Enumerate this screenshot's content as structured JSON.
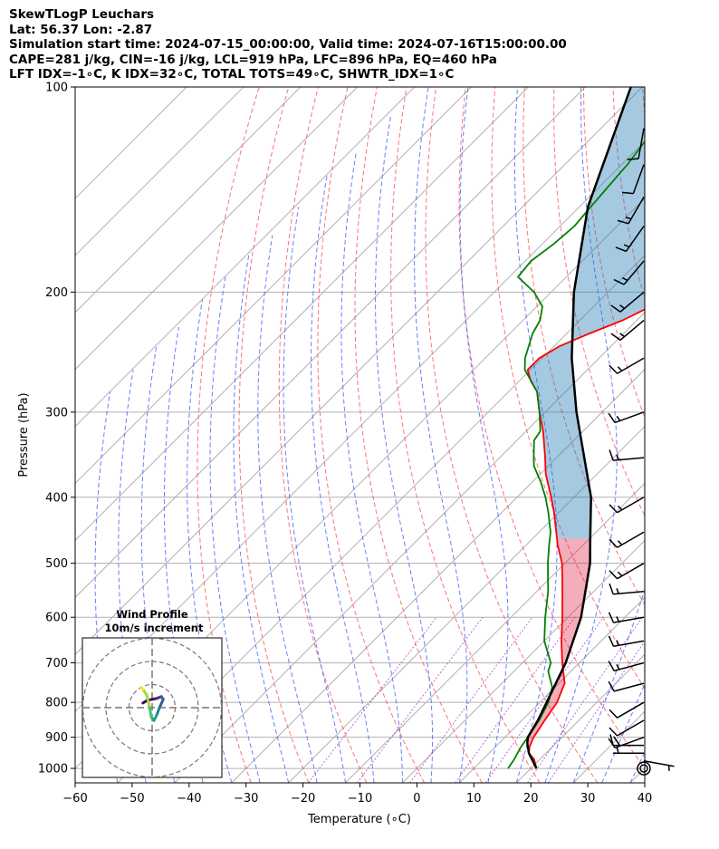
{
  "header": {
    "line1": "SkewTLogP Leuchars",
    "line2": "Lat: 56.37   Lon: -2.87",
    "line3": "Simulation start time: 2024-07-15_00:00:00, Valid time: 2024-07-16T15:00:00.00",
    "line4": "CAPE=281 j/kg, CIN=-16 j/kg, LCL=919 hPa, LFC=896 hPa, EQ=460 hPa",
    "line5": "LFT IDX=-1∘C, K IDX=32∘C, TOTAL TOTS=49∘C, SHWTR_IDX=1∘C"
  },
  "chart_data": {
    "type": "skewt",
    "xlabel": "Temperature (∘C)",
    "ylabel": "Pressure (hPa)",
    "xlim": [
      -60,
      40
    ],
    "ylim": [
      1050,
      100
    ],
    "x_ticks": [
      -60,
      -50,
      -40,
      -30,
      -20,
      -10,
      0,
      10,
      20,
      30,
      40
    ],
    "x_tick_labels": [
      "−60",
      "−50",
      "−40",
      "−30",
      "−20",
      "−10",
      "0",
      "10",
      "20",
      "30",
      "40"
    ],
    "y_ticks": [
      1000,
      900,
      800,
      700,
      600,
      500,
      400,
      300,
      200,
      100
    ],
    "y_tick_labels": [
      "1000",
      "900",
      "800",
      "700",
      "600",
      "500",
      "400",
      "300",
      "200",
      "100"
    ],
    "series": [
      {
        "name": "Temperature",
        "color": "#ff0000",
        "p": [
          1000,
          970,
          950,
          930,
          900,
          850,
          800,
          750,
          700,
          650,
          600,
          550,
          500,
          470,
          450,
          420,
          400,
          370,
          350,
          320,
          300,
          280,
          270,
          260,
          250,
          240,
          230,
          220,
          210,
          200,
          190,
          180,
          170,
          160,
          150,
          140,
          130,
          120,
          110,
          100
        ],
        "t": [
          21,
          19,
          17,
          16,
          15,
          14,
          13,
          11,
          7,
          3,
          -1,
          -5.5,
          -10.5,
          -14.5,
          -17,
          -21,
          -24,
          -29,
          -32,
          -37,
          -41,
          -45,
          -48,
          -50.5,
          -50.5,
          -49,
          -46,
          -42.5,
          -40,
          -37,
          -36,
          -36,
          -36.5,
          -36,
          -36.5,
          -37,
          -36.5,
          -36.5,
          -37,
          -37
        ]
      },
      {
        "name": "Dewpoint",
        "color": "#008000",
        "p": [
          1000,
          970,
          950,
          930,
          900,
          850,
          800,
          760,
          720,
          700,
          650,
          600,
          550,
          500,
          470,
          450,
          420,
          400,
          380,
          360,
          350,
          330,
          320,
          300,
          280,
          260,
          250,
          230,
          220,
          210,
          200,
          190,
          180,
          170,
          160,
          150,
          140,
          130,
          120,
          110,
          100
        ],
        "t": [
          16,
          15.5,
          15,
          14.5,
          14,
          13,
          11.5,
          9.5,
          6,
          5,
          0,
          -4,
          -8,
          -13,
          -16,
          -18,
          -22,
          -25,
          -28.5,
          -32.5,
          -34,
          -37,
          -37.5,
          -41,
          -45,
          -51,
          -53,
          -56,
          -57,
          -59,
          -63,
          -68.5,
          -69,
          -68,
          -67.5,
          -68,
          -68.5,
          -69,
          -70,
          -71,
          -72
        ]
      },
      {
        "name": "Parcel profile",
        "color": "#000000",
        "p": [
          1000,
          950,
          919,
          900,
          850,
          800,
          700,
          600,
          500,
          460,
          400,
          300,
          250,
          200,
          150,
          100
        ],
        "t": [
          21,
          17,
          15,
          14,
          12.8,
          11.2,
          7.6,
          2.3,
          -5.6,
          -9.9,
          -17,
          -34.5,
          -44.8,
          -56,
          -68.5,
          -82
        ]
      }
    ],
    "shaded_areas": [
      {
        "name": "CAPE",
        "color": "#1f77b4",
        "p_range": [
          460,
          100
        ]
      },
      {
        "name": "CIN",
        "color": "#dc143c",
        "p_range": [
          1000,
          460
        ]
      }
    ],
    "wind_barbs": {
      "p": [
        1000,
        975,
        950,
        925,
        900,
        850,
        800,
        750,
        700,
        650,
        600,
        550,
        500,
        450,
        400,
        350,
        300,
        250,
        220,
        200,
        180,
        160,
        145,
        130,
        115
      ],
      "speed_kt": [
        0,
        5,
        5,
        10,
        20,
        10,
        10,
        10,
        15,
        15,
        15,
        15,
        15,
        15,
        15,
        15,
        15,
        15,
        15,
        15,
        15,
        15,
        15,
        10,
        10
      ],
      "direction_deg": [
        0,
        100,
        270,
        270,
        250,
        240,
        240,
        255,
        255,
        260,
        260,
        265,
        240,
        240,
        240,
        265,
        250,
        240,
        230,
        230,
        220,
        215,
        210,
        200,
        190
      ]
    },
    "hodograph": {
      "title": "Wind Profile",
      "subtitle": "10m/s increment",
      "rings_ms": [
        10,
        20,
        30
      ],
      "u": [
        -1,
        -0.5,
        0.5,
        1,
        1.2,
        0.8,
        0.5,
        0.2,
        -0.1,
        -0.3,
        -0.6,
        -1.0,
        -1.2
      ],
      "v": [
        0.5,
        0.8,
        1.0,
        1.2,
        0.9,
        0.0,
        -0.8,
        -1.4,
        -1.0,
        0.2,
        1.4,
        2.0,
        2.2
      ]
    }
  }
}
